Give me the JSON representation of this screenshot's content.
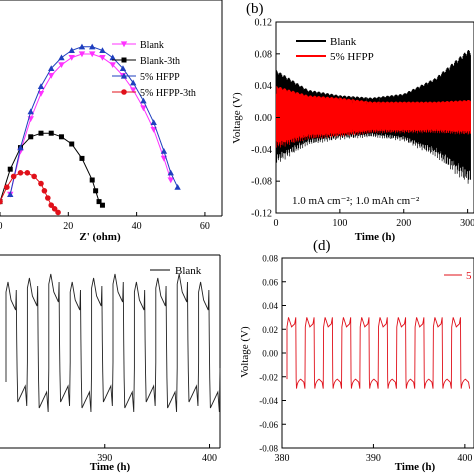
{
  "panels": {
    "a": {
      "xlabel": "Z' (ohm)",
      "xticks": [
        "0",
        "20",
        "40",
        "60"
      ],
      "legend": [
        "Blank",
        "Blank-3th",
        "5% HFPP",
        "5% HFPP-3th"
      ]
    },
    "b": {
      "tag": "(b)",
      "xlabel": "Time (h)",
      "ylabel": "Voltage (V)",
      "xticks": [
        "0",
        "100",
        "200",
        "300"
      ],
      "yticks": [
        "0.12",
        "0.08",
        "0.04",
        "0.00",
        "-0.04",
        "-0.08",
        "-0.12"
      ],
      "legend": [
        "Blank",
        "5% HFPP"
      ],
      "note": "1.0 mA cm⁻²; 1.0 mAh cm⁻²"
    },
    "c": {
      "xlabel": "Time (h)",
      "xticks": [
        "390",
        "400"
      ],
      "legend": [
        "Blank"
      ]
    },
    "d": {
      "tag": "(d)",
      "xlabel": "Time (h)",
      "ylabel": "Voltage (V)",
      "xticks": [
        "380",
        "390",
        "400"
      ],
      "yticks": [
        "0.08",
        "0.06",
        "0.04",
        "0.02",
        "0.00",
        "-0.02",
        "-0.04",
        "-0.06",
        "-0.08"
      ],
      "legend": [
        "5"
      ]
    }
  },
  "colors": {
    "blank": "#ff33ff",
    "blank3": "#000000",
    "hfpp": "#1f3fbf",
    "hfpp3": "#e0101a",
    "red_trace": "#ff0000"
  },
  "chart_data": [
    {
      "panel": "a",
      "type": "scatter",
      "xlabel": "Z' (ohm)",
      "xlim": [
        0,
        65
      ],
      "ylim": [
        0,
        30
      ],
      "series": [
        {
          "name": "Blank",
          "marker": "triangle-down",
          "x": [
            3,
            6,
            9,
            12,
            15,
            18,
            21,
            24,
            27,
            30,
            33,
            36,
            39,
            42,
            45,
            48,
            50
          ],
          "y": [
            3,
            9,
            13.5,
            17,
            19.5,
            21,
            22,
            22.5,
            22.5,
            22,
            21,
            19.5,
            17.5,
            15,
            12,
            8,
            5
          ]
        },
        {
          "name": "Blank-3th",
          "marker": "square",
          "x": [
            0,
            3,
            6,
            9,
            12,
            15,
            18,
            21,
            24,
            27,
            28,
            29,
            30
          ],
          "y": [
            2,
            6.5,
            9.5,
            11,
            11.5,
            11.5,
            11,
            10,
            8,
            5,
            3.5,
            2,
            1.5
          ]
        },
        {
          "name": "5% HFPP",
          "marker": "triangle-up",
          "x": [
            3,
            6,
            9,
            12,
            15,
            18,
            21,
            24,
            27,
            30,
            33,
            36,
            39,
            42,
            45,
            48,
            50,
            52
          ],
          "y": [
            3,
            9.5,
            14.5,
            18,
            20.5,
            22,
            23,
            23.5,
            23.5,
            23,
            22,
            20.5,
            18.5,
            16,
            13,
            9,
            6,
            4
          ]
        },
        {
          "name": "5% HFPP-3th",
          "marker": "circle",
          "x": [
            0,
            2,
            4,
            6,
            8,
            10,
            12,
            13,
            14,
            15,
            16,
            17
          ],
          "y": [
            2,
            4,
            5.5,
            6,
            6,
            5.5,
            4.5,
            3.5,
            2.5,
            1.5,
            1,
            0.5
          ]
        }
      ]
    },
    {
      "panel": "b",
      "type": "line",
      "xlabel": "Time (h)",
      "ylabel": "Voltage (V)",
      "xlim": [
        0,
        310
      ],
      "ylim": [
        -0.12,
        0.12
      ],
      "series": [
        {
          "name": "Blank",
          "x": [
            0,
            50,
            100,
            150,
            200,
            250,
            300
          ],
          "y_max": [
            0.06,
            0.035,
            0.028,
            0.025,
            0.03,
            0.05,
            0.085
          ]
        },
        {
          "name": "5% HFPP",
          "x": [
            0,
            50,
            100,
            150,
            200,
            250,
            300
          ],
          "y_max": [
            0.04,
            0.028,
            0.025,
            0.02,
            0.02,
            0.02,
            0.022
          ]
        }
      ]
    },
    {
      "panel": "c",
      "type": "line",
      "xlabel": "Time (h)",
      "xlim": [
        380,
        401
      ],
      "series": [
        {
          "name": "Blank",
          "pattern": "square-wave voltage profile",
          "cycles": 10
        }
      ]
    },
    {
      "panel": "d",
      "type": "line",
      "xlabel": "Time (h)",
      "ylabel": "Voltage (V)",
      "xlim": [
        380,
        401
      ],
      "ylim": [
        -0.08,
        0.08
      ],
      "series": [
        {
          "pattern": "square-wave voltage profile",
          "cycles": 10,
          "upper": 0.022,
          "lower": -0.022,
          "spike": 0.03
        }
      ]
    }
  ]
}
